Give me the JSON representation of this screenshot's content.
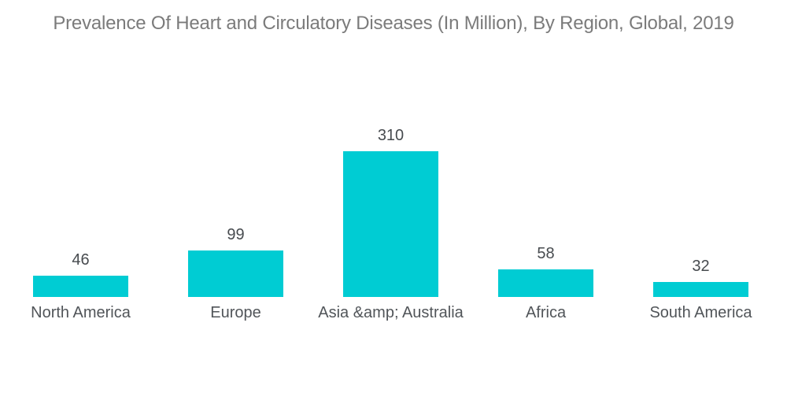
{
  "chart_data": {
    "type": "bar",
    "title": "Prevalence Of Heart and Circulatory Diseases (In Million), By Region, Global, 2019",
    "categories": [
      "North America",
      "Europe",
      "Asia &amp; Australia",
      "Africa",
      "South America"
    ],
    "values": [
      46,
      99,
      310,
      58,
      32
    ],
    "xlabel": "",
    "ylabel": "",
    "ylim": [
      0,
      310
    ],
    "grid": false,
    "legend": false,
    "value_label_position": "above-bar",
    "bar_color": "#00CCD3",
    "title_color": "#7B7B7B",
    "value_color": "#474B4F",
    "category_color": "#515559",
    "background_color": "#FFFFFF"
  }
}
